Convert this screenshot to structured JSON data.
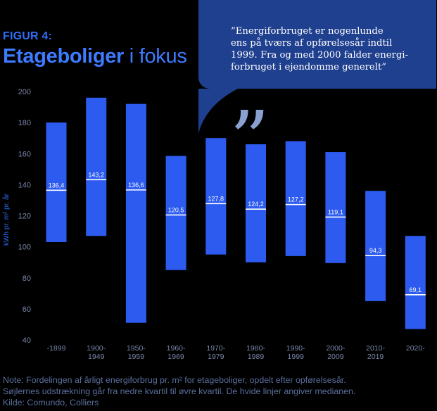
{
  "header": {
    "figure_label": "FIGUR 4:",
    "title_bold": "Etageboliger",
    "title_light": " i fokus"
  },
  "quote": {
    "lines": [
      "”Energiforbruget er nogenlunde",
      "ens på tværs af opførelsesår indtil",
      "1999. Fra og med 2000 falder energi-",
      "forbruget i ejendomme generelt”"
    ],
    "quote_mark": "”"
  },
  "note": {
    "lines": [
      "Note: Fordelingen af årligt energiforbrug pr. m² for etageboliger, opdelt efter opførelsesår.",
      "Søjlernes udstrækning går fra nedre kvartil til øvre kvartil. De hvide linjer angiver medianen.",
      "Kilde: Comundo, Colliers"
    ]
  },
  "colors": {
    "bar": "#2d5bf0",
    "median": "#ffffff",
    "accent": "#3d7bff",
    "background": "#000000"
  },
  "chart_data": {
    "type": "bar",
    "subtype": "floating-range-with-median",
    "ylabel": "kWh pr. m² pr. år",
    "ylim": [
      40,
      200
    ],
    "yticks": [
      40,
      60,
      80,
      100,
      120,
      140,
      160,
      180,
      200
    ],
    "grid": false,
    "categories": [
      [
        "-1899",
        ""
      ],
      [
        "1900-",
        "1949"
      ],
      [
        "1950-",
        "1959"
      ],
      [
        "1960-",
        "1969"
      ],
      [
        "1970-",
        "1979"
      ],
      [
        "1980-",
        "1989"
      ],
      [
        "1990-",
        "1999"
      ],
      [
        "2000-",
        "2009"
      ],
      [
        "2010-",
        "2019"
      ],
      [
        "2020-",
        ""
      ]
    ],
    "lower_quartile": [
      103,
      107,
      51,
      85,
      95,
      90,
      94,
      89.5,
      65,
      47
    ],
    "upper_quartile": [
      180,
      196,
      192,
      158.5,
      170,
      166,
      168,
      161,
      136,
      107
    ],
    "median": [
      136.4,
      143.2,
      136.6,
      120.5,
      127.8,
      124.2,
      127.2,
      119.1,
      94.3,
      69.1
    ],
    "median_labels": [
      "136,4",
      "143,2",
      "136,6",
      "120,5",
      "127,8",
      "124,2",
      "127,2",
      "119,1",
      "94,3",
      "69,1"
    ]
  }
}
